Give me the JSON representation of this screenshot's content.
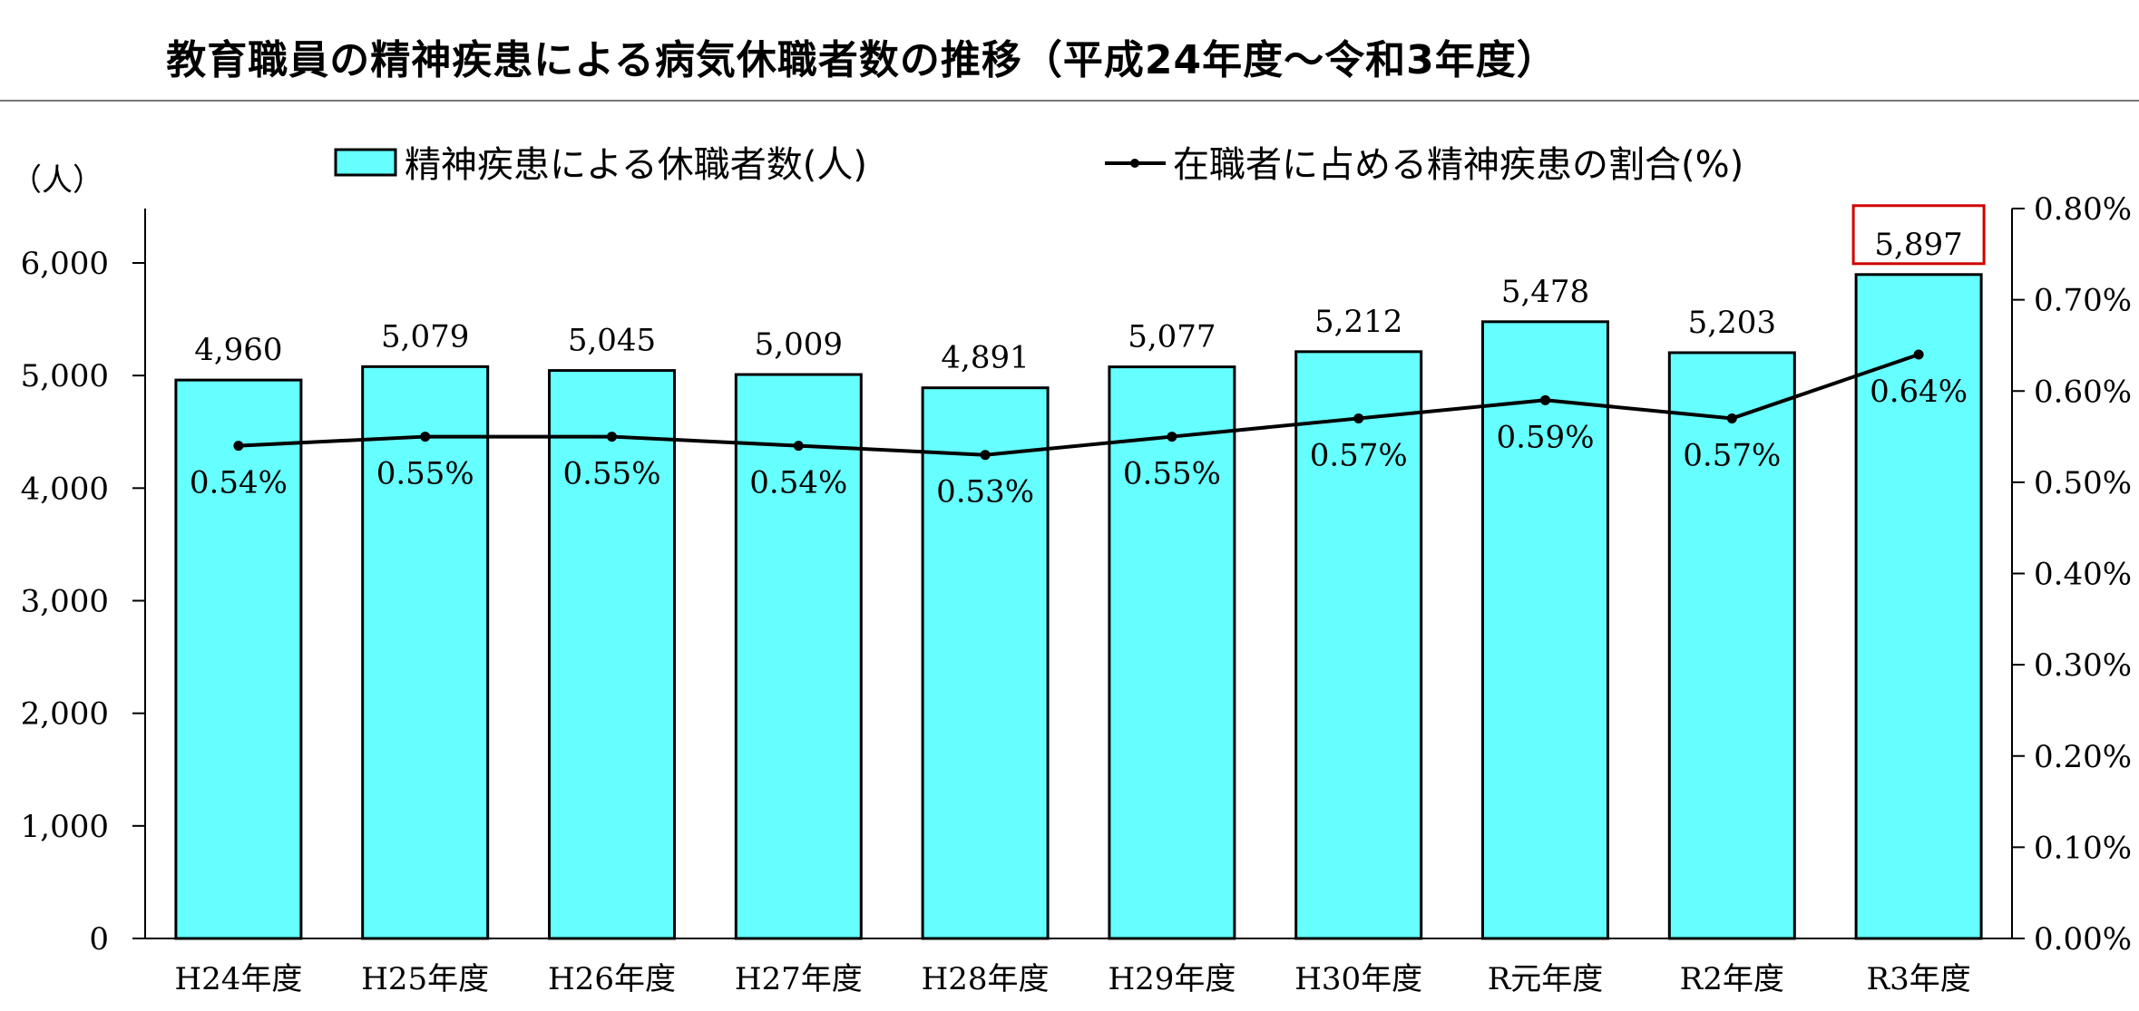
{
  "chart_title": "教育職員の精神疾患による病気休職者数の推移（平成24年度～令和3年度）",
  "chart_data": {
    "type": "bar",
    "title": "教育職員の精神疾患による病気休職者数の推移（平成24年度～令和3年度）",
    "categories": [
      "H24年度",
      "H25年度",
      "H26年度",
      "H27年度",
      "H28年度",
      "H29年度",
      "H30年度",
      "R元年度",
      "R2年度",
      "R3年度"
    ],
    "series": [
      {
        "name": "精神疾患による休職者数(人)",
        "type": "bar",
        "values": [
          4960,
          5079,
          5045,
          5009,
          4891,
          5077,
          5212,
          5478,
          5203,
          5897
        ],
        "labels": [
          "4,960",
          "5,079",
          "5,045",
          "5,009",
          "4,891",
          "5,077",
          "5,212",
          "5,478",
          "5,203",
          "5,897"
        ]
      },
      {
        "name": "在職者に占める精神疾患の割合(%)",
        "type": "line",
        "values": [
          0.54,
          0.55,
          0.55,
          0.54,
          0.53,
          0.55,
          0.57,
          0.59,
          0.57,
          0.64
        ],
        "labels": [
          "0.54%",
          "0.55%",
          "0.55%",
          "0.54%",
          "0.53%",
          "0.55%",
          "0.57%",
          "0.59%",
          "0.57%",
          "0.64%"
        ]
      }
    ],
    "y_left": {
      "unit_label": "（人）",
      "ylim": [
        0,
        6500
      ],
      "ticks": [
        0,
        1000,
        2000,
        3000,
        4000,
        5000,
        6000
      ],
      "tick_labels": [
        "0",
        "1,000",
        "2,000",
        "3,000",
        "4,000",
        "5,000",
        "6,000"
      ]
    },
    "y_right": {
      "ylim": [
        0,
        0.8
      ],
      "ticks": [
        0,
        0.1,
        0.2,
        0.3,
        0.4,
        0.5,
        0.6,
        0.7,
        0.8
      ],
      "tick_labels": [
        "0.00%",
        "0.10%",
        "0.20%",
        "0.30%",
        "0.40%",
        "0.50%",
        "0.60%",
        "0.70%",
        "0.80%"
      ]
    },
    "highlight_index": 9,
    "colors": {
      "bar_fill": "#66FFFF",
      "bar_stroke": "#000000",
      "line": "#000000",
      "highlight_box": "#D00000"
    },
    "legend": {
      "placement": "top-center",
      "bar_label": "精神疾患による休職者数(人)",
      "line_label": "在職者に占める精神疾患の割合(%)"
    }
  }
}
